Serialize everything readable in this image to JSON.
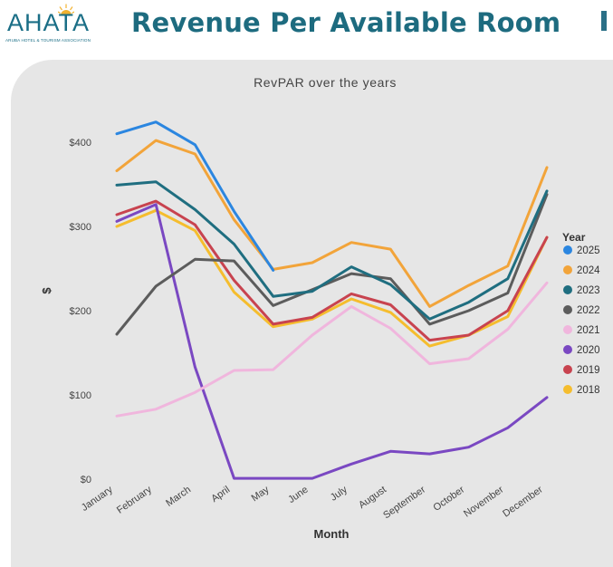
{
  "header": {
    "logo_text": "AHATA",
    "logo_subtext": "ARUBA HOTEL & TOURISM ASSOCIATION",
    "page_title": "Revenue Per Available Room"
  },
  "chart_data": {
    "type": "line",
    "title": "RevPAR over the years",
    "xlabel": "Month",
    "ylabel": "$",
    "ylim": [
      0,
      450
    ],
    "yticks": [
      0,
      100,
      200,
      300,
      400
    ],
    "ytick_labels": [
      "$0",
      "$100",
      "$200",
      "$300",
      "$400"
    ],
    "grid": false,
    "legend_title": "Year",
    "legend_position": "right",
    "categories": [
      "January",
      "February",
      "March",
      "April",
      "May",
      "June",
      "July",
      "August",
      "September",
      "October",
      "November",
      "December"
    ],
    "series": [
      {
        "name": "2025",
        "color": "#2b86e0",
        "values": [
          410,
          424,
          397,
          318,
          248,
          null,
          null,
          null,
          null,
          null,
          null,
          null
        ]
      },
      {
        "name": "2024",
        "color": "#f2a43a",
        "values": [
          366,
          402,
          386,
          308,
          249,
          257,
          281,
          273,
          205,
          230,
          253,
          370
        ]
      },
      {
        "name": "2023",
        "color": "#1f6e80",
        "values": [
          349,
          353,
          320,
          279,
          217,
          223,
          252,
          231,
          190,
          210,
          238,
          342
        ]
      },
      {
        "name": "2022",
        "color": "#5c5c5c",
        "values": [
          172,
          229,
          261,
          259,
          206,
          225,
          244,
          238,
          184,
          200,
          221,
          338
        ]
      },
      {
        "name": "2021",
        "color": "#f0b6dd",
        "values": [
          75,
          83,
          103,
          129,
          130,
          171,
          205,
          179,
          137,
          143,
          178,
          233
        ]
      },
      {
        "name": "2020",
        "color": "#7a48c2",
        "values": [
          306,
          326,
          133,
          1,
          1,
          1,
          18,
          33,
          30,
          38,
          61,
          97
        ]
      },
      {
        "name": "2019",
        "color": "#c8434f",
        "values": [
          314,
          330,
          302,
          236,
          184,
          192,
          220,
          207,
          165,
          171,
          200,
          287
        ]
      },
      {
        "name": "2018",
        "color": "#f5bd2e",
        "values": [
          300,
          319,
          295,
          222,
          181,
          190,
          214,
          198,
          158,
          171,
          193,
          287
        ]
      }
    ]
  }
}
